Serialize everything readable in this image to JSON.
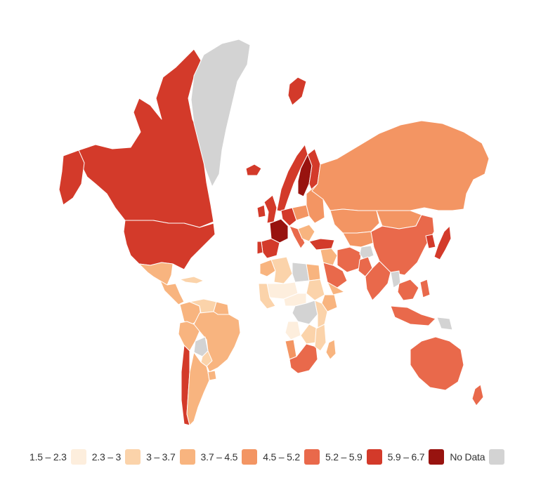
{
  "map": {
    "colors": {
      "c1": "#fdeedd",
      "c2": "#fbd3aa",
      "c3": "#f8b47f",
      "c4": "#f39563",
      "c5": "#e9694b",
      "c6": "#d33a2a",
      "c7": "#98130f",
      "nodata": "#d3d3d3"
    },
    "regions": [
      {
        "name": "Canada",
        "bin": "c6"
      },
      {
        "name": "United States",
        "bin": "c6"
      },
      {
        "name": "Alaska",
        "bin": "c6"
      },
      {
        "name": "Greenland",
        "bin": "nodata"
      },
      {
        "name": "Mexico",
        "bin": "c3"
      },
      {
        "name": "Central America",
        "bin": "c3"
      },
      {
        "name": "Cuba",
        "bin": "c2"
      },
      {
        "name": "Colombia",
        "bin": "c3"
      },
      {
        "name": "Venezuela",
        "bin": "c2"
      },
      {
        "name": "Guianas",
        "bin": "c3"
      },
      {
        "name": "Brazil",
        "bin": "c3"
      },
      {
        "name": "Peru",
        "bin": "c3"
      },
      {
        "name": "Bolivia",
        "bin": "nodata"
      },
      {
        "name": "Paraguay",
        "bin": "c2"
      },
      {
        "name": "Chile",
        "bin": "c6"
      },
      {
        "name": "Argentina",
        "bin": "c3"
      },
      {
        "name": "Uruguay",
        "bin": "c3"
      },
      {
        "name": "Iceland",
        "bin": "c6"
      },
      {
        "name": "Svalbard",
        "bin": "c6"
      },
      {
        "name": "Norway",
        "bin": "c6"
      },
      {
        "name": "Sweden",
        "bin": "c7"
      },
      {
        "name": "Finland",
        "bin": "c6"
      },
      {
        "name": "United Kingdom",
        "bin": "c6"
      },
      {
        "name": "Ireland",
        "bin": "c6"
      },
      {
        "name": "France",
        "bin": "c7"
      },
      {
        "name": "Spain",
        "bin": "c6"
      },
      {
        "name": "Portugal",
        "bin": "c6"
      },
      {
        "name": "Germany",
        "bin": "c6"
      },
      {
        "name": "Italy",
        "bin": "c5"
      },
      {
        "name": "Poland",
        "bin": "c4"
      },
      {
        "name": "Eastern Europe",
        "bin": "c4"
      },
      {
        "name": "Balkans",
        "bin": "c3"
      },
      {
        "name": "Turkey",
        "bin": "c6"
      },
      {
        "name": "Russia",
        "bin": "c4"
      },
      {
        "name": "Kazakhstan",
        "bin": "c4"
      },
      {
        "name": "Central Asia",
        "bin": "c4"
      },
      {
        "name": "Mongolia",
        "bin": "c4"
      },
      {
        "name": "China",
        "bin": "c5"
      },
      {
        "name": "Korea",
        "bin": "c6"
      },
      {
        "name": "Japan",
        "bin": "c6"
      },
      {
        "name": "Iran",
        "bin": "c5"
      },
      {
        "name": "Afghanistan",
        "bin": "nodata"
      },
      {
        "name": "Pakistan",
        "bin": "c5"
      },
      {
        "name": "India",
        "bin": "c5"
      },
      {
        "name": "Saudi Arabia",
        "bin": "c5"
      },
      {
        "name": "Yemen",
        "bin": "c3"
      },
      {
        "name": "Iraq Syria",
        "bin": "c3"
      },
      {
        "name": "Myanmar",
        "bin": "nodata"
      },
      {
        "name": "Southeast Asia",
        "bin": "c5"
      },
      {
        "name": "Indonesia",
        "bin": "c5"
      },
      {
        "name": "Philippines",
        "bin": "c5"
      },
      {
        "name": "Papua New Guinea",
        "bin": "nodata"
      },
      {
        "name": "Australia",
        "bin": "c5"
      },
      {
        "name": "New Zealand",
        "bin": "c5"
      },
      {
        "name": "Morocco",
        "bin": "c3"
      },
      {
        "name": "Algeria",
        "bin": "c2"
      },
      {
        "name": "Libya",
        "bin": "nodata"
      },
      {
        "name": "Egypt",
        "bin": "c3"
      },
      {
        "name": "Sahel",
        "bin": "c1"
      },
      {
        "name": "Sudan",
        "bin": "c2"
      },
      {
        "name": "Ethiopia",
        "bin": "c3"
      },
      {
        "name": "West Africa",
        "bin": "c2"
      },
      {
        "name": "Central Africa",
        "bin": "c1"
      },
      {
        "name": "DR Congo",
        "bin": "nodata"
      },
      {
        "name": "East Africa",
        "bin": "c2"
      },
      {
        "name": "Angola",
        "bin": "c1"
      },
      {
        "name": "Zambia Zimbabwe",
        "bin": "c2"
      },
      {
        "name": "Namibia",
        "bin": "c4"
      },
      {
        "name": "South Africa",
        "bin": "c5"
      },
      {
        "name": "Madagascar",
        "bin": "c3"
      },
      {
        "name": "Mozambique",
        "bin": "c2"
      }
    ]
  },
  "legend": [
    {
      "label": "1.5 – 2.3",
      "color": "#fdeedd"
    },
    {
      "label": "2.3 – 3",
      "color": "#fbd3aa"
    },
    {
      "label": "3 – 3.7",
      "color": "#f8b47f"
    },
    {
      "label": "3.7 – 4.5",
      "color": "#f39563"
    },
    {
      "label": "4.5 – 5.2",
      "color": "#e9694b"
    },
    {
      "label": "5.2 – 5.9",
      "color": "#d33a2a"
    },
    {
      "label": "5.9 – 6.7",
      "color": "#98130f"
    },
    {
      "label": "No Data",
      "color": "#d3d3d3"
    }
  ]
}
